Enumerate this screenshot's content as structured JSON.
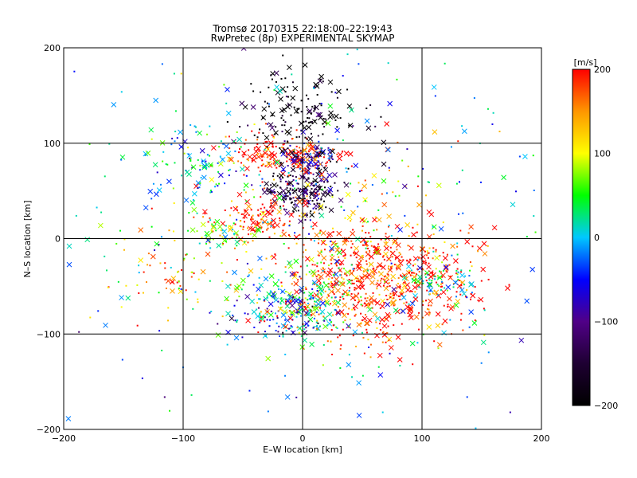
{
  "chart_data": {
    "type": "scatter",
    "title": "Tromsø 20170315 22:18:00–22:19:43",
    "subtitle": "RwPretec (8p) EXPERIMENTAL SKYMAP",
    "xlabel": "E–W location [km]",
    "ylabel": "N–S location [km]",
    "xlim": [
      -200,
      200
    ],
    "ylim": [
      -200,
      200
    ],
    "xticks": [
      "−200",
      "−100",
      "0",
      "100",
      "200"
    ],
    "yticks": [
      "−200",
      "−100",
      "0",
      "100",
      "200"
    ],
    "grid": true,
    "marker_types": [
      "x",
      "dot"
    ],
    "colorbar": {
      "label": "[m/s]",
      "range": [
        -200,
        200
      ],
      "ticks": [
        "200",
        "100",
        "0",
        "−100",
        "−200"
      ],
      "colors": [
        "#000000",
        "#1e0032",
        "#500087",
        "#0000ff",
        "#00c8ff",
        "#00ff00",
        "#ffff00",
        "#ff9600",
        "#ff0000"
      ]
    },
    "clusters": [
      {
        "x": 65,
        "y": -38,
        "sx": 38,
        "sy": 25,
        "v": 190,
        "n": 520
      },
      {
        "x": 120,
        "y": -45,
        "sx": 15,
        "sy": 10,
        "v": 15,
        "n": 60
      },
      {
        "x": 0,
        "y": 50,
        "sx": 14,
        "sy": 12,
        "v": -150,
        "n": 200
      },
      {
        "x": -15,
        "y": 88,
        "sx": 25,
        "sy": 10,
        "v": 200,
        "n": 180
      },
      {
        "x": 5,
        "y": 85,
        "sx": 12,
        "sy": 8,
        "v": -90,
        "n": 80
      },
      {
        "x": 0,
        "y": 130,
        "sx": 25,
        "sy": 25,
        "v": -200,
        "n": 170
      },
      {
        "x": -40,
        "y": 20,
        "sx": 18,
        "sy": 14,
        "v": 190,
        "n": 130
      },
      {
        "x": -70,
        "y": 5,
        "sx": 12,
        "sy": 8,
        "v": 80,
        "n": 50
      },
      {
        "x": 0,
        "y": -70,
        "sx": 22,
        "sy": 18,
        "v": 30,
        "n": 180
      },
      {
        "x": -20,
        "y": -80,
        "sx": 20,
        "sy": 14,
        "v": -60,
        "n": 70
      },
      {
        "x": -90,
        "y": 80,
        "sx": 25,
        "sy": 20,
        "v": 0,
        "n": 90
      },
      {
        "x": 50,
        "y": -80,
        "sx": 40,
        "sy": 20,
        "v": 200,
        "n": 150
      },
      {
        "x": 30,
        "y": 20,
        "sx": 40,
        "sy": 40,
        "v": 140,
        "n": 130
      },
      {
        "x": -110,
        "y": -40,
        "sx": 30,
        "sy": 30,
        "v": 150,
        "n": 70
      },
      {
        "x": 0,
        "y": 0,
        "sx": 110,
        "sy": 110,
        "v": 0,
        "n": 380
      }
    ]
  }
}
